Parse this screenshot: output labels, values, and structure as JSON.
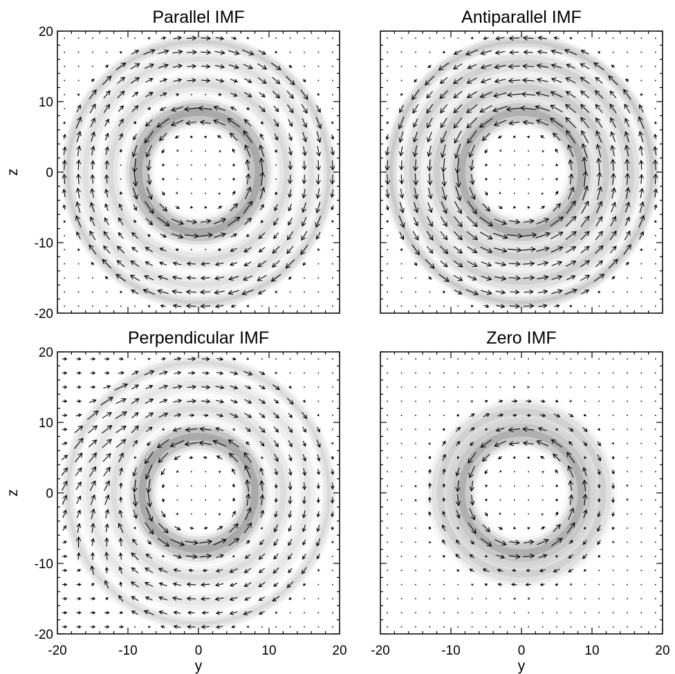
{
  "chart_data": [
    {
      "type": "vector-field",
      "title": "Parallel IMF",
      "xlabel": "",
      "ylabel": "z",
      "xlim": [
        -20,
        20
      ],
      "ylim": [
        -20,
        20
      ],
      "xticks": [],
      "yticks": [
        "20",
        "10",
        "0",
        "-10",
        "-20"
      ],
      "grid": false,
      "rings": [
        {
          "radius": 8.5,
          "width": 1.7,
          "density": 0.55,
          "flow": "counterclockwise",
          "speed": 1.0
        },
        {
          "radius": 12.5,
          "width": 1.3,
          "density": 0.22,
          "flow": "clockwise",
          "speed": 0.6
        },
        {
          "radius": 16.0,
          "width": 1.3,
          "density": 0.18,
          "flow": "clockwise",
          "speed": 0.65
        },
        {
          "radius": 18.5,
          "width": 0.9,
          "density": 0.28,
          "flow": "clockwise",
          "speed": 0.7
        }
      ],
      "asymmetry": 0
    },
    {
      "type": "vector-field",
      "title": "Antiparallel IMF",
      "xlabel": "",
      "ylabel": "",
      "xlim": [
        -20,
        20
      ],
      "ylim": [
        -20,
        20
      ],
      "xticks": [],
      "yticks": [],
      "grid": false,
      "rings": [
        {
          "radius": 8.5,
          "width": 1.7,
          "density": 0.5,
          "flow": "counterclockwise",
          "speed": 1.0
        },
        {
          "radius": 12.0,
          "width": 1.5,
          "density": 0.3,
          "flow": "counterclockwise",
          "speed": 0.7
        },
        {
          "radius": 15.5,
          "width": 1.5,
          "density": 0.28,
          "flow": "counterclockwise",
          "speed": 0.7
        },
        {
          "radius": 18.5,
          "width": 0.9,
          "density": 0.32,
          "flow": "counterclockwise",
          "speed": 0.75
        }
      ],
      "asymmetry": 0
    },
    {
      "type": "vector-field",
      "title": "Perpendicular IMF",
      "xlabel": "y",
      "ylabel": "z",
      "xlim": [
        -20,
        20
      ],
      "ylim": [
        -20,
        20
      ],
      "xticks": [
        "-20",
        "-10",
        "0",
        "10",
        "20"
      ],
      "yticks": [
        "20",
        "10",
        "0",
        "-10",
        "-20"
      ],
      "grid": false,
      "rings": [
        {
          "radius": 8.0,
          "width": 1.7,
          "density": 0.55,
          "flow": "counterclockwise",
          "speed": 1.0
        },
        {
          "radius": 12.0,
          "width": 1.4,
          "density": 0.2,
          "flow": "clockwise",
          "speed": 0.65
        },
        {
          "radius": 15.5,
          "width": 1.3,
          "density": 0.14,
          "flow": "clockwise",
          "speed": 0.55
        },
        {
          "radius": 18.5,
          "width": 0.9,
          "density": 0.22,
          "flow": "clockwise",
          "speed": 0.6
        }
      ],
      "asymmetry": 0.6
    },
    {
      "type": "vector-field",
      "title": "Zero IMF",
      "xlabel": "y",
      "ylabel": "",
      "xlim": [
        -20,
        20
      ],
      "ylim": [
        -20,
        20
      ],
      "xticks": [
        "-20",
        "-10",
        "0",
        "10",
        "20"
      ],
      "yticks": [],
      "grid": false,
      "rings": [
        {
          "radius": 8.5,
          "width": 1.7,
          "density": 0.5,
          "flow": "counterclockwise",
          "speed": 1.0
        },
        {
          "radius": 11.5,
          "width": 1.6,
          "density": 0.28,
          "flow": "clockwise",
          "speed": 0.6
        }
      ],
      "asymmetry": 0
    }
  ]
}
